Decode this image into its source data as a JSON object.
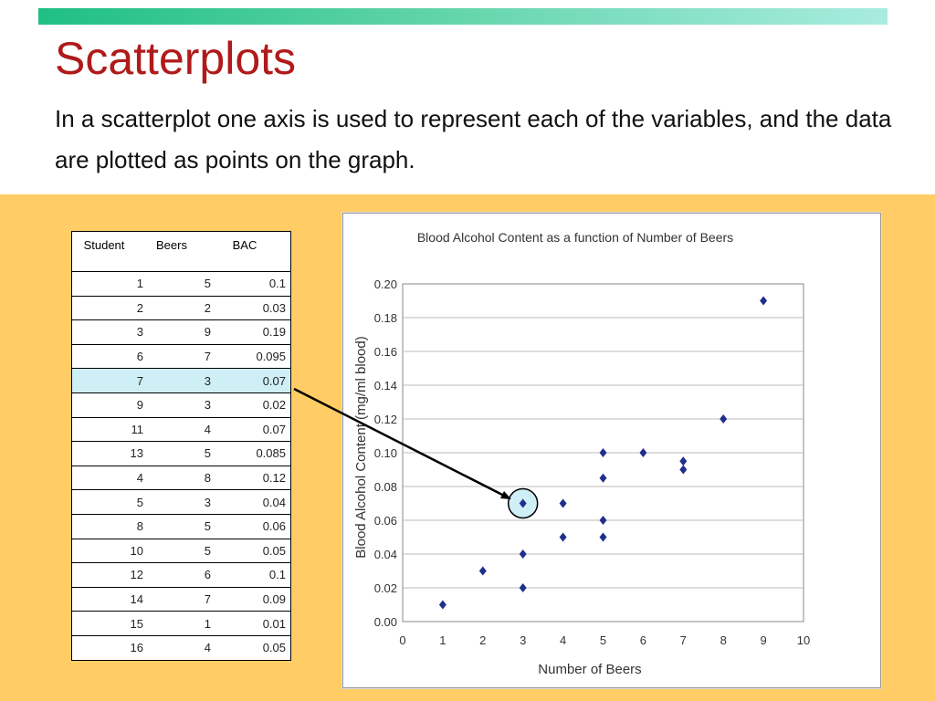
{
  "slide": {
    "title": "Scatterplots",
    "subtitle": "In a scatterplot one axis is used to represent each of the variables, and the data are plotted as points on the graph."
  },
  "table": {
    "headers": [
      "Student",
      "Beers",
      "BAC"
    ],
    "highlight_row": 4,
    "rows": [
      [
        "1",
        "5",
        "0.1"
      ],
      [
        "2",
        "2",
        "0.03"
      ],
      [
        "3",
        "9",
        "0.19"
      ],
      [
        "6",
        "7",
        "0.095"
      ],
      [
        "7",
        "3",
        "0.07"
      ],
      [
        "9",
        "3",
        "0.02"
      ],
      [
        "11",
        "4",
        "0.07"
      ],
      [
        "13",
        "5",
        "0.085"
      ],
      [
        "4",
        "8",
        "0.12"
      ],
      [
        "5",
        "3",
        "0.04"
      ],
      [
        "8",
        "5",
        "0.06"
      ],
      [
        "10",
        "5",
        "0.05"
      ],
      [
        "12",
        "6",
        "0.1"
      ],
      [
        "14",
        "7",
        "0.09"
      ],
      [
        "15",
        "1",
        "0.01"
      ],
      [
        "16",
        "4",
        "0.05"
      ]
    ]
  },
  "chart_data": {
    "type": "scatter",
    "title": "Blood Alcohol Content as a function of Number of Beers",
    "xlabel": "Number of Beers",
    "ylabel": "Blood Alcohol Content (mg/ml blood)",
    "xlim": [
      0,
      10
    ],
    "ylim": [
      0,
      0.2
    ],
    "xticks": [
      "0",
      "1",
      "2",
      "3",
      "4",
      "5",
      "6",
      "7",
      "8",
      "9",
      "10"
    ],
    "yticks": [
      "0.00",
      "0.02",
      "0.04",
      "0.06",
      "0.08",
      "0.10",
      "0.12",
      "0.14",
      "0.16",
      "0.18",
      "0.20"
    ],
    "grid": "horizontal",
    "point_color": "#1f2f8c",
    "highlight_color": "#cfeff7",
    "highlight_point": [
      3,
      0.07
    ],
    "points": [
      [
        5,
        0.1
      ],
      [
        2,
        0.03
      ],
      [
        9,
        0.19
      ],
      [
        7,
        0.095
      ],
      [
        3,
        0.07
      ],
      [
        3,
        0.02
      ],
      [
        4,
        0.07
      ],
      [
        5,
        0.085
      ],
      [
        8,
        0.12
      ],
      [
        3,
        0.04
      ],
      [
        5,
        0.06
      ],
      [
        5,
        0.05
      ],
      [
        6,
        0.1
      ],
      [
        7,
        0.09
      ],
      [
        1,
        0.01
      ],
      [
        4,
        0.05
      ]
    ]
  }
}
